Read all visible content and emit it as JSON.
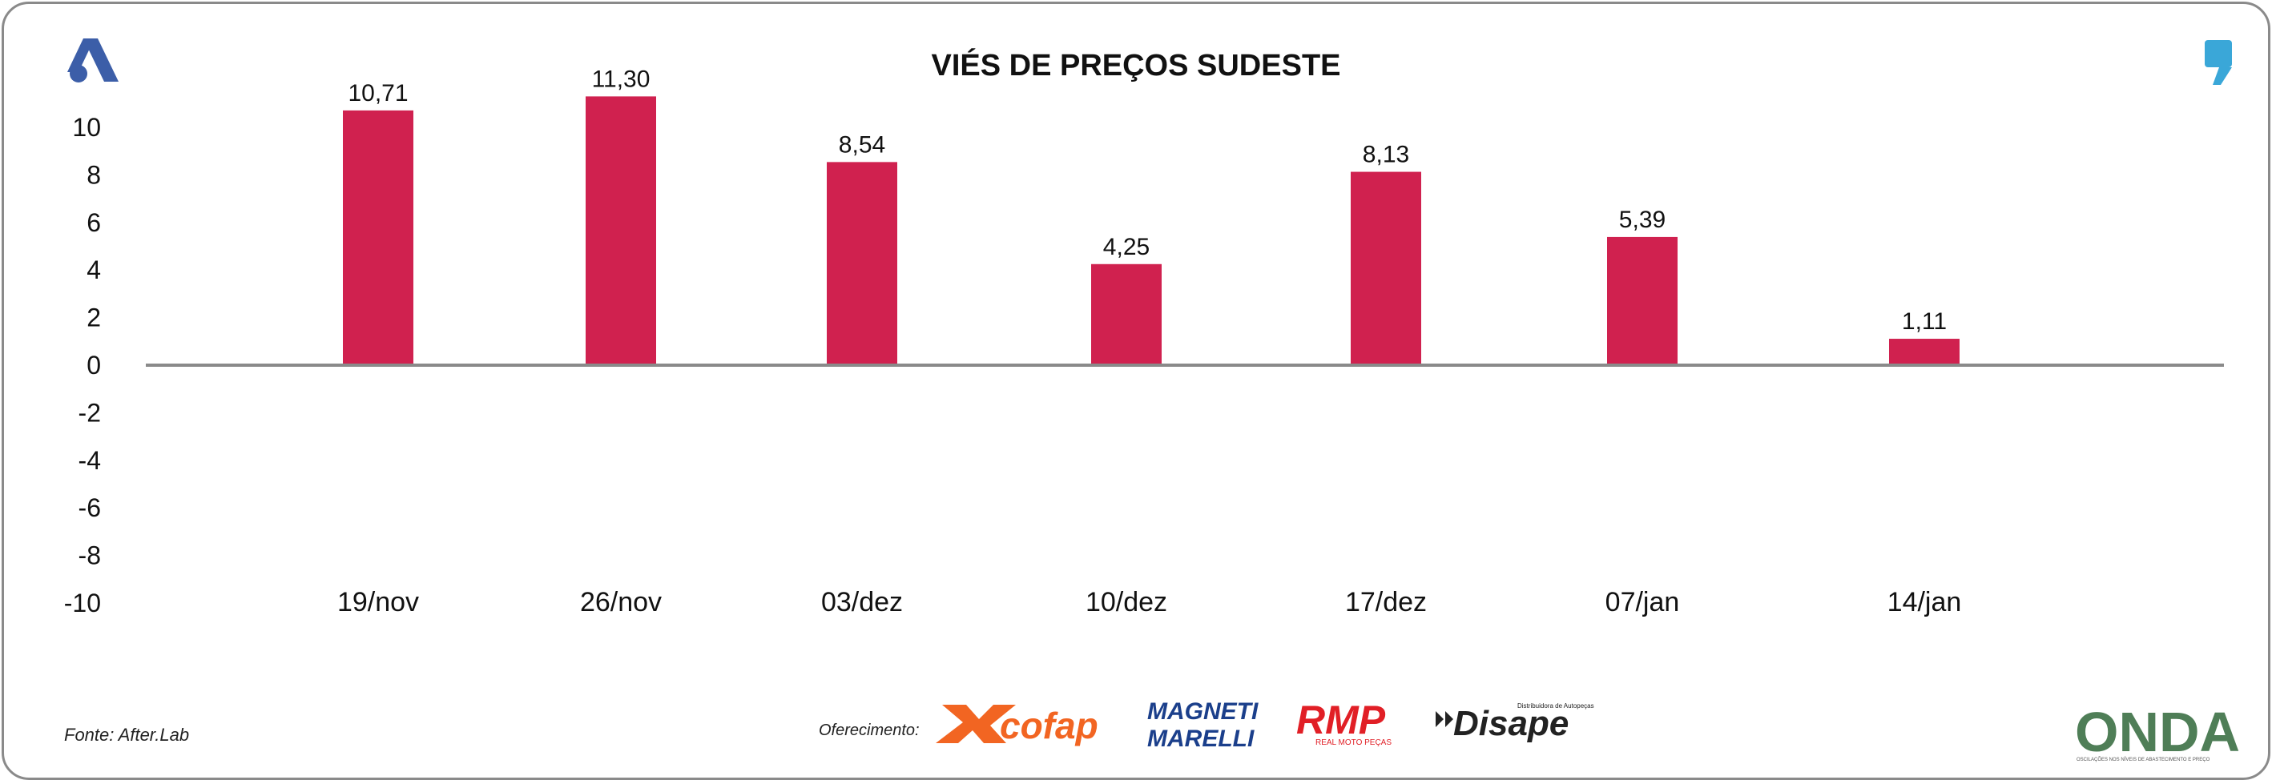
{
  "chart_data": {
    "type": "bar",
    "title": "VIÉS DE PREÇOS SUDESTE",
    "categories": [
      "19/nov",
      "26/nov",
      "03/dez",
      "10/dez",
      "17/dez",
      "07/jan",
      "14/jan"
    ],
    "values": [
      10.71,
      11.3,
      8.54,
      4.25,
      8.13,
      5.39,
      1.11
    ],
    "data_labels": [
      "10,71",
      "11,30",
      "8,54",
      "4,25",
      "8,13",
      "5,39",
      "1,11"
    ],
    "ylim": [
      -10,
      10
    ],
    "yticks": [
      10,
      8,
      6,
      4,
      2,
      0,
      -2,
      -4,
      -6,
      -8,
      -10
    ],
    "xlabel": "",
    "ylabel": "",
    "grid": false,
    "legend": "none",
    "bar_color": "#d0214f"
  },
  "footer": {
    "source": "Fonte: After.Lab",
    "sponsor_label": "Oferecimento:"
  },
  "logos": {
    "top_left": "after-lab-a-logo",
    "top_right": "comma-logo",
    "sponsors": [
      {
        "name": "cofap",
        "text": "cofap",
        "color": "#f26522"
      },
      {
        "name": "magneti-marelli",
        "text_top": "MAGNETI",
        "text_bottom": "MARELLI",
        "color": "#1b3f8b"
      },
      {
        "name": "rmp",
        "text": "RMP",
        "subtext": "REAL MOTO PEÇAS",
        "color": "#e11f26"
      },
      {
        "name": "disape",
        "text": "Disape",
        "subtext": "Distribuidora de Autopeças",
        "color": "#222222"
      }
    ],
    "bottom_right": {
      "text": "ONDA",
      "subtext": "OSCILAÇÕES NOS NÍVEIS DE ABASTECIMENTO E PREÇO"
    }
  },
  "colors": {
    "accent_blue": "#3c5ea8",
    "top_right_blue": "#3aa7d8",
    "axis": "#8a8a8a",
    "onda_green": "#5f8a4a",
    "onda_blue": "#3b6fa8"
  }
}
